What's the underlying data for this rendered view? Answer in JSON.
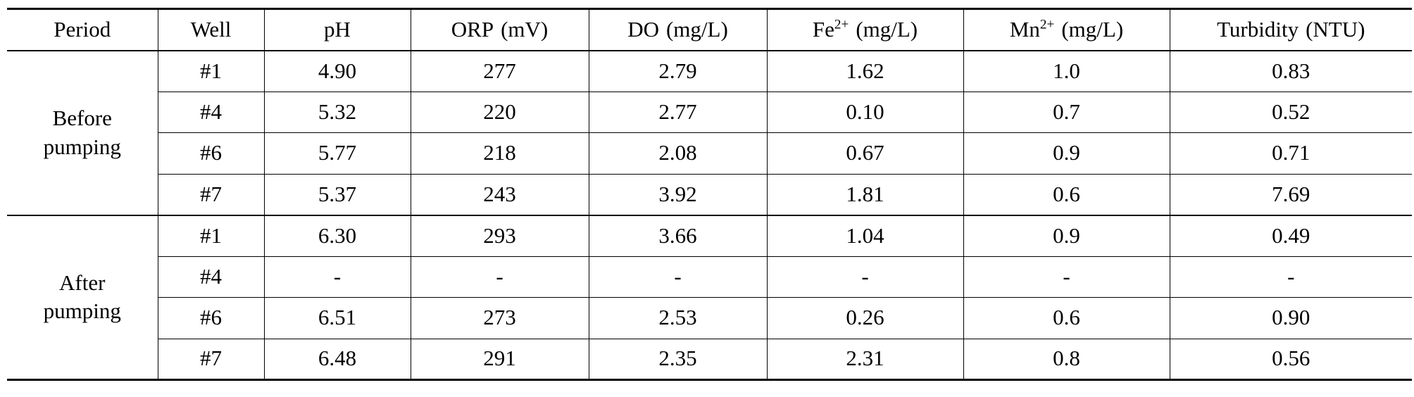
{
  "table": {
    "headers": {
      "period": "Period",
      "well": "Well",
      "ph": "pH",
      "orp": {
        "name": "ORP",
        "unit": "(mV)"
      },
      "do": {
        "name": "DO",
        "unit": "(mg/L)"
      },
      "fe": {
        "base": "Fe",
        "sup": "2+",
        "unit": "(mg/L)"
      },
      "mn": {
        "base": "Mn",
        "sup": "2+",
        "unit": "(mg/L)"
      },
      "turbidity": {
        "name": "Turbidity",
        "unit": "(NTU)"
      }
    },
    "groups": [
      {
        "period_line1": "Before",
        "period_line2": "pumping",
        "rows": [
          {
            "well": "#1",
            "ph": "4.90",
            "orp": "277",
            "do": "2.79",
            "fe": "1.62",
            "mn": "1.0",
            "turbidity": "0.83"
          },
          {
            "well": "#4",
            "ph": "5.32",
            "orp": "220",
            "do": "2.77",
            "fe": "0.10",
            "mn": "0.7",
            "turbidity": "0.52"
          },
          {
            "well": "#6",
            "ph": "5.77",
            "orp": "218",
            "do": "2.08",
            "fe": "0.67",
            "mn": "0.9",
            "turbidity": "0.71"
          },
          {
            "well": "#7",
            "ph": "5.37",
            "orp": "243",
            "do": "3.92",
            "fe": "1.81",
            "mn": "0.6",
            "turbidity": "7.69"
          }
        ]
      },
      {
        "period_line1": "After",
        "period_line2": "pumping",
        "rows": [
          {
            "well": "#1",
            "ph": "6.30",
            "orp": "293",
            "do": "3.66",
            "fe": "1.04",
            "mn": "0.9",
            "turbidity": "0.49"
          },
          {
            "well": "#4",
            "ph": "-",
            "orp": "-",
            "do": "-",
            "fe": "-",
            "mn": "-",
            "turbidity": "-"
          },
          {
            "well": "#6",
            "ph": "6.51",
            "orp": "273",
            "do": "2.53",
            "fe": "0.26",
            "mn": "0.6",
            "turbidity": "0.90"
          },
          {
            "well": "#7",
            "ph": "6.48",
            "orp": "291",
            "do": "2.35",
            "fe": "2.31",
            "mn": "0.8",
            "turbidity": "0.56"
          }
        ]
      }
    ]
  }
}
